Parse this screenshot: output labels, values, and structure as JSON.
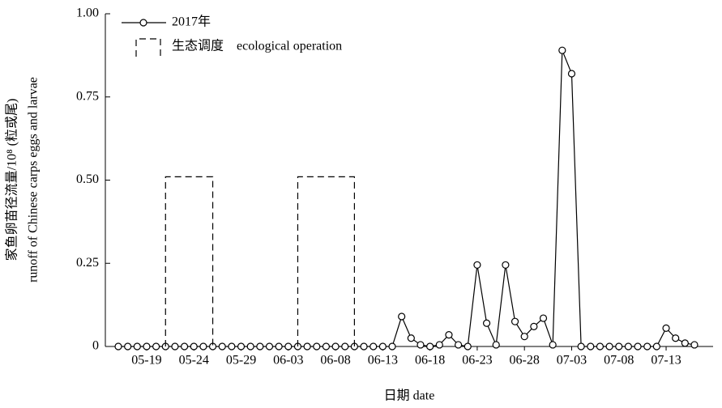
{
  "chart_data": {
    "type": "line",
    "ylabel": [
      "家鱼卵苗径流量/10⁸ (粒或尾)",
      "runoff of Chinese carps eggs and larvae"
    ],
    "xlabel": "日期    date",
    "categories": [
      null,
      null,
      null,
      "05-19",
      null,
      null,
      null,
      null,
      "05-24",
      null,
      null,
      null,
      null,
      "05-29",
      null,
      null,
      null,
      null,
      "06-03",
      null,
      null,
      null,
      null,
      "06-08",
      null,
      null,
      null,
      null,
      "06-13",
      null,
      null,
      null,
      null,
      "06-18",
      null,
      null,
      null,
      null,
      "06-23",
      null,
      null,
      null,
      null,
      "06-28",
      null,
      null,
      null,
      null,
      "07-03",
      null,
      null,
      null,
      null,
      "07-08",
      null,
      null,
      null,
      null,
      "07-13",
      null,
      null,
      null
    ],
    "series": [
      {
        "name": "2017年",
        "color": "#000000",
        "style": "line-marker",
        "values": [
          0,
          0,
          0,
          0,
          0,
          0,
          0,
          0,
          0,
          0,
          0,
          0,
          0,
          0,
          0,
          0,
          0,
          0,
          0,
          0,
          0,
          0,
          0,
          0,
          0,
          0,
          0,
          0,
          0,
          0,
          0.09,
          0.025,
          0.005,
          0,
          0.005,
          0.035,
          0.005,
          0,
          0.245,
          0.07,
          0.005,
          0.245,
          0.075,
          0.03,
          0.06,
          0.085,
          0.005,
          0.89,
          0.82,
          0,
          0,
          0,
          0,
          0,
          0,
          0,
          0,
          0,
          0.055,
          0.025,
          0.01,
          0.005
        ]
      },
      {
        "name": "生态调度    ecological operation",
        "color": "#000000",
        "style": "dashed-box",
        "values": [
          null,
          null,
          null,
          null,
          null,
          0.51,
          0.51,
          0.51,
          0.51,
          0.51,
          0.51,
          null,
          null,
          null,
          null,
          null,
          null,
          null,
          null,
          0.51,
          0.51,
          0.51,
          0.51,
          0.51,
          0.51,
          0.51,
          null,
          null,
          null,
          null,
          null,
          null,
          null,
          null,
          null,
          null,
          null,
          null,
          null,
          null,
          null,
          null,
          null,
          null,
          null,
          null,
          null,
          null,
          null,
          null,
          null,
          null,
          null,
          null,
          null,
          null,
          null,
          null,
          null,
          null,
          null,
          null
        ]
      }
    ],
    "ylim": [
      0,
      1
    ],
    "yticks": [
      0,
      0.25,
      {
        "value": 0.5,
        "label": "0.50"
      },
      0.75,
      {
        "value": 1,
        "label": "1.00"
      }
    ],
    "legend": "upper left"
  }
}
